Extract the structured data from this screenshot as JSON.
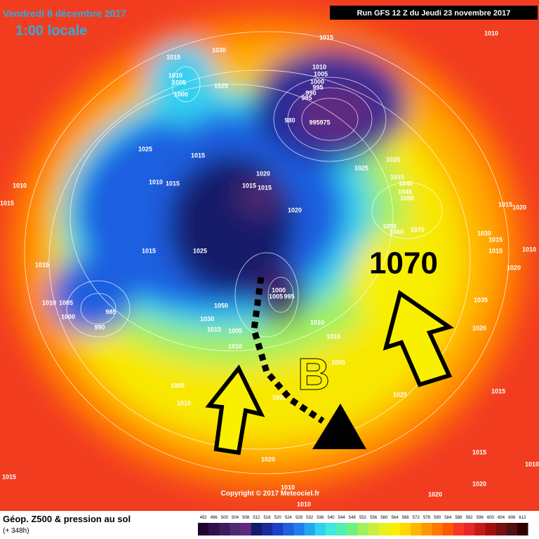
{
  "header": {
    "date": "Vendredi 8 décembre 2017",
    "time": "1:00 locale",
    "run": "Run GFS 12 Z du Jeudi 23 novembre 2017"
  },
  "footer": {
    "title": "Géop. Z500 & pression au sol",
    "lead": "(+ 348h)",
    "copyright": "Copyright © 2017 Meteociel.fr"
  },
  "annotations": {
    "high": "1070",
    "low": "B"
  },
  "labels": [
    "1010",
    "1015",
    "1030",
    "1015",
    "1010",
    "1005",
    "1000",
    "1025",
    "1010",
    "1005",
    "1000",
    "995",
    "990",
    "985",
    "980",
    "995",
    "975",
    "1025",
    "1015",
    "1025",
    "1025",
    "1020",
    "1015",
    "1015",
    "1010",
    "1015",
    "1010",
    "1015",
    "1015",
    "1040",
    "1045",
    "1050",
    "1020",
    "1015",
    "1020",
    "1055",
    "1060",
    "1070",
    "1030",
    "1015",
    "1010",
    "1015",
    "1025",
    "1015",
    "1015",
    "1020",
    "1000",
    "1005",
    "995",
    "1050",
    "1035",
    "1010",
    "1005",
    "1000",
    "985",
    "990",
    "1030",
    "1015",
    "1005",
    "1010",
    "1010",
    "1015",
    "1020",
    "1005",
    "1005",
    "1010",
    "1025",
    "1025",
    "1015",
    "1020",
    "1020",
    "1015",
    "1010",
    "1015",
    "1020",
    "1010",
    "1020",
    "1010"
  ],
  "colorbar": {
    "ticks": [
      492,
      496,
      500,
      504,
      508,
      512,
      516,
      520,
      524,
      528,
      532,
      536,
      540,
      544,
      548,
      552,
      556,
      560,
      564,
      568,
      572,
      576,
      580,
      584,
      588,
      592,
      596,
      600,
      604,
      608,
      612
    ],
    "colors": [
      "#200030",
      "#30104a",
      "#401a60",
      "#502a70",
      "#602a80",
      "#141a6a",
      "#1a2a9a",
      "#1f3fc8",
      "#1f5fe0",
      "#1e80ef",
      "#20a8f0",
      "#30d0f0",
      "#40e8e0",
      "#50f0b0",
      "#70f080",
      "#a0f060",
      "#c8f040",
      "#e8f020",
      "#f8f000",
      "#ffd800",
      "#ffb800",
      "#ff9800",
      "#ff7800",
      "#ff5800",
      "#f83820",
      "#e82828",
      "#c81818",
      "#a01010",
      "#781010",
      "#501010",
      "#300000"
    ]
  }
}
